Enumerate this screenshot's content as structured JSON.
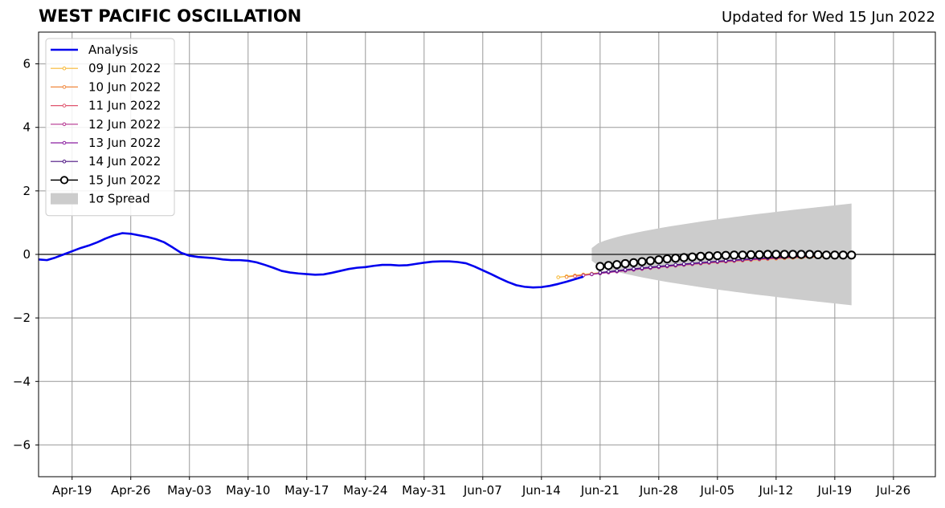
{
  "chart_data": {
    "type": "line",
    "title": "WEST PACIFIC OSCILLATION",
    "subtitle": "Updated for Wed 15 Jun 2022",
    "xlabel": "",
    "ylabel": "",
    "xlim": [
      "2022-04-15",
      "2022-07-31"
    ],
    "ylim": [
      -7,
      7
    ],
    "grid": true,
    "legend_position": "upper-left",
    "xticks": [
      {
        "date": "2022-04-19",
        "label": "Apr-19"
      },
      {
        "date": "2022-04-26",
        "label": "Apr-26"
      },
      {
        "date": "2022-05-03",
        "label": "May-03"
      },
      {
        "date": "2022-05-10",
        "label": "May-10"
      },
      {
        "date": "2022-05-17",
        "label": "May-17"
      },
      {
        "date": "2022-05-24",
        "label": "May-24"
      },
      {
        "date": "2022-05-31",
        "label": "May-31"
      },
      {
        "date": "2022-06-07",
        "label": "Jun-07"
      },
      {
        "date": "2022-06-14",
        "label": "Jun-14"
      },
      {
        "date": "2022-06-21",
        "label": "Jun-21"
      },
      {
        "date": "2022-06-28",
        "label": "Jun-28"
      },
      {
        "date": "2022-07-05",
        "label": "Jul-05"
      },
      {
        "date": "2022-07-12",
        "label": "Jul-12"
      },
      {
        "date": "2022-07-19",
        "label": "Jul-19"
      },
      {
        "date": "2022-07-26",
        "label": "Jul-26"
      }
    ],
    "yticks": [
      {
        "value": 6,
        "label": "6"
      },
      {
        "value": 4,
        "label": "4"
      },
      {
        "value": 2,
        "label": "2"
      },
      {
        "value": 0,
        "label": "0"
      },
      {
        "value": -2,
        "label": "−2"
      },
      {
        "value": -4,
        "label": "−4"
      },
      {
        "value": -6,
        "label": "−6"
      }
    ],
    "analysis": {
      "name": "Analysis",
      "color": "#0000ee",
      "points": [
        [
          "2022-04-15",
          -0.16
        ],
        [
          "2022-04-16",
          -0.18
        ],
        [
          "2022-04-17",
          -0.1
        ],
        [
          "2022-04-18",
          0.0
        ],
        [
          "2022-04-19",
          0.1
        ],
        [
          "2022-04-20",
          0.2
        ],
        [
          "2022-04-21",
          0.28
        ],
        [
          "2022-04-22",
          0.38
        ],
        [
          "2022-04-23",
          0.5
        ],
        [
          "2022-04-24",
          0.6
        ],
        [
          "2022-04-25",
          0.67
        ],
        [
          "2022-04-26",
          0.65
        ],
        [
          "2022-04-27",
          0.6
        ],
        [
          "2022-04-28",
          0.55
        ],
        [
          "2022-04-29",
          0.48
        ],
        [
          "2022-04-30",
          0.38
        ],
        [
          "2022-05-01",
          0.22
        ],
        [
          "2022-05-02",
          0.05
        ],
        [
          "2022-05-03",
          -0.04
        ],
        [
          "2022-05-04",
          -0.08
        ],
        [
          "2022-05-05",
          -0.1
        ],
        [
          "2022-05-06",
          -0.12
        ],
        [
          "2022-05-07",
          -0.16
        ],
        [
          "2022-05-08",
          -0.18
        ],
        [
          "2022-05-09",
          -0.18
        ],
        [
          "2022-05-10",
          -0.2
        ],
        [
          "2022-05-11",
          -0.25
        ],
        [
          "2022-05-12",
          -0.33
        ],
        [
          "2022-05-13",
          -0.42
        ],
        [
          "2022-05-14",
          -0.52
        ],
        [
          "2022-05-15",
          -0.57
        ],
        [
          "2022-05-16",
          -0.6
        ],
        [
          "2022-05-17",
          -0.62
        ],
        [
          "2022-05-18",
          -0.64
        ],
        [
          "2022-05-19",
          -0.63
        ],
        [
          "2022-05-20",
          -0.58
        ],
        [
          "2022-05-21",
          -0.52
        ],
        [
          "2022-05-22",
          -0.46
        ],
        [
          "2022-05-23",
          -0.42
        ],
        [
          "2022-05-24",
          -0.4
        ],
        [
          "2022-05-25",
          -0.36
        ],
        [
          "2022-05-26",
          -0.33
        ],
        [
          "2022-05-27",
          -0.33
        ],
        [
          "2022-05-28",
          -0.35
        ],
        [
          "2022-05-29",
          -0.34
        ],
        [
          "2022-05-30",
          -0.3
        ],
        [
          "2022-05-31",
          -0.26
        ],
        [
          "2022-06-01",
          -0.23
        ],
        [
          "2022-06-02",
          -0.22
        ],
        [
          "2022-06-03",
          -0.22
        ],
        [
          "2022-06-04",
          -0.24
        ],
        [
          "2022-06-05",
          -0.28
        ],
        [
          "2022-06-06",
          -0.38
        ],
        [
          "2022-06-07",
          -0.5
        ],
        [
          "2022-06-08",
          -0.62
        ],
        [
          "2022-06-09",
          -0.75
        ],
        [
          "2022-06-10",
          -0.87
        ],
        [
          "2022-06-11",
          -0.97
        ],
        [
          "2022-06-12",
          -1.02
        ],
        [
          "2022-06-13",
          -1.04
        ],
        [
          "2022-06-14",
          -1.03
        ],
        [
          "2022-06-15",
          -0.99
        ],
        [
          "2022-06-16",
          -0.93
        ],
        [
          "2022-06-17",
          -0.86
        ],
        [
          "2022-06-18",
          -0.78
        ],
        [
          "2022-06-19",
          -0.7
        ]
      ]
    },
    "forecasts": [
      {
        "name": "09 Jun 2022",
        "color": "#f7b733",
        "start": "2022-06-16",
        "start_value": -0.72,
        "end_value": -0.06
      },
      {
        "name": "10 Jun 2022",
        "color": "#f0883e",
        "start": "2022-06-17",
        "start_value": -0.71,
        "end_value": -0.05
      },
      {
        "name": "11 Jun 2022",
        "color": "#e0556e",
        "start": "2022-06-18",
        "start_value": -0.69,
        "end_value": -0.04
      },
      {
        "name": "12 Jun 2022",
        "color": "#b4348f",
        "start": "2022-06-19",
        "start_value": -0.66,
        "end_value": -0.03
      },
      {
        "name": "13 Jun 2022",
        "color": "#8a1fa0",
        "start": "2022-06-20",
        "start_value": -0.62,
        "end_value": -0.02
      },
      {
        "name": "14 Jun 2022",
        "color": "#4a1080",
        "start": "2022-06-21",
        "start_value": -0.57,
        "end_value": -0.01
      }
    ],
    "forecast_latest": {
      "name": "15 Jun 2022",
      "color": "#000000",
      "points": [
        [
          "2022-06-21",
          -0.38
        ],
        [
          "2022-06-22",
          -0.35
        ],
        [
          "2022-06-23",
          -0.32
        ],
        [
          "2022-06-24",
          -0.29
        ],
        [
          "2022-06-25",
          -0.26
        ],
        [
          "2022-06-26",
          -0.23
        ],
        [
          "2022-06-27",
          -0.2
        ],
        [
          "2022-06-28",
          -0.17
        ],
        [
          "2022-06-29",
          -0.14
        ],
        [
          "2022-06-30",
          -0.12
        ],
        [
          "2022-07-01",
          -0.1
        ],
        [
          "2022-07-02",
          -0.08
        ],
        [
          "2022-07-03",
          -0.06
        ],
        [
          "2022-07-04",
          -0.05
        ],
        [
          "2022-07-05",
          -0.04
        ],
        [
          "2022-07-06",
          -0.03
        ],
        [
          "2022-07-07",
          -0.02
        ],
        [
          "2022-07-08",
          -0.02
        ],
        [
          "2022-07-09",
          -0.01
        ],
        [
          "2022-07-10",
          -0.01
        ],
        [
          "2022-07-11",
          0.0
        ],
        [
          "2022-07-12",
          0.0
        ],
        [
          "2022-07-13",
          0.0
        ],
        [
          "2022-07-14",
          0.0
        ],
        [
          "2022-07-15",
          0.0
        ],
        [
          "2022-07-16",
          0.0
        ],
        [
          "2022-07-17",
          -0.01
        ],
        [
          "2022-07-18",
          -0.02
        ],
        [
          "2022-07-19",
          -0.02
        ],
        [
          "2022-07-20",
          -0.02
        ],
        [
          "2022-07-21",
          -0.02
        ]
      ]
    },
    "spread": {
      "name": "1σ Spread",
      "color": "#cccccc",
      "start": "2022-06-20",
      "end": "2022-07-21",
      "half_width_start": 0.2,
      "half_width_end": 1.6
    }
  }
}
